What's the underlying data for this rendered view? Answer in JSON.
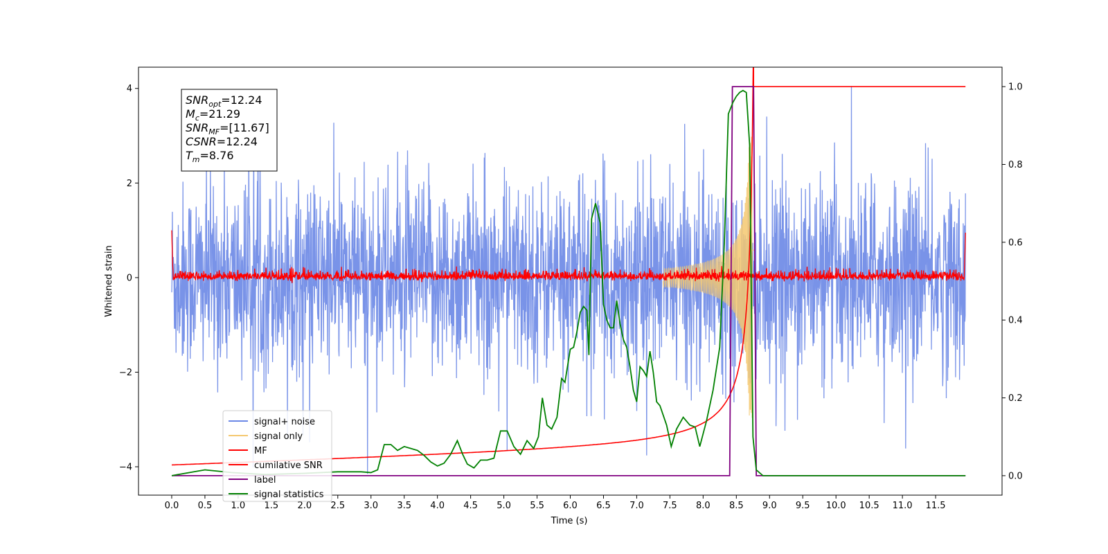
{
  "chart_data": {
    "type": "line",
    "xlabel": "Time (s)",
    "ylabel": "Whitened strain",
    "xlim": [
      -0.5,
      12.5
    ],
    "ylim": [
      -4.6,
      4.45
    ],
    "y2lim": [
      -0.05,
      1.05
    ],
    "x_ticks": [
      "0.0",
      "0.5",
      "1.0",
      "1.5",
      "2.0",
      "2.5",
      "3.0",
      "3.5",
      "4.0",
      "4.5",
      "5.0",
      "5.5",
      "6.0",
      "6.5",
      "7.0",
      "7.5",
      "8.0",
      "8.5",
      "9.0",
      "9.5",
      "10.0",
      "10.5",
      "11.0",
      "11.5"
    ],
    "y_ticks": [
      "4",
      "2",
      "0",
      "−2",
      "−4"
    ],
    "y2_ticks": [
      "1.0",
      "0.8",
      "0.6",
      "0.4",
      "0.2",
      "0.0"
    ],
    "info_box": [
      {
        "sym": "SNR",
        "sub": "opt",
        "val": "=12.24"
      },
      {
        "sym": "M",
        "sub": "c",
        "val": "=21.29"
      },
      {
        "sym": "SNR",
        "sub": "MF",
        "val": "=[11.67]"
      },
      {
        "sym": "CSNR",
        "sub": "",
        "val": "=12.24"
      },
      {
        "sym": "T",
        "sub": "m",
        "val": "=8.76"
      }
    ],
    "legend": {
      "position": "lower-left",
      "entries": [
        {
          "label": "signal+ noise",
          "color": "#6a87e6"
        },
        {
          "label": "signal only",
          "color": "#f5c870"
        },
        {
          "label": "MF",
          "color": "#ff0000"
        },
        {
          "label": "cumilative SNR",
          "color": "#ff0000"
        },
        {
          "label": "label",
          "color": "#800080"
        },
        {
          "label": "signal statistics",
          "color": "#008000"
        }
      ]
    },
    "series": [
      {
        "name": "signal statistics",
        "axis": "right",
        "color": "#008000",
        "points": [
          [
            0.0,
            0.0
          ],
          [
            0.5,
            0.015
          ],
          [
            0.9,
            0.008
          ],
          [
            1.4,
            0.003
          ],
          [
            2.0,
            0.006
          ],
          [
            2.5,
            0.01
          ],
          [
            2.85,
            0.01
          ],
          [
            3.0,
            0.008
          ],
          [
            3.1,
            0.015
          ],
          [
            3.2,
            0.08
          ],
          [
            3.3,
            0.08
          ],
          [
            3.4,
            0.065
          ],
          [
            3.5,
            0.075
          ],
          [
            3.6,
            0.07
          ],
          [
            3.7,
            0.065
          ],
          [
            3.8,
            0.052
          ],
          [
            3.9,
            0.035
          ],
          [
            4.0,
            0.025
          ],
          [
            4.1,
            0.032
          ],
          [
            4.2,
            0.055
          ],
          [
            4.3,
            0.09
          ],
          [
            4.38,
            0.055
          ],
          [
            4.45,
            0.03
          ],
          [
            4.55,
            0.02
          ],
          [
            4.65,
            0.04
          ],
          [
            4.75,
            0.04
          ],
          [
            4.85,
            0.045
          ],
          [
            4.95,
            0.115
          ],
          [
            5.05,
            0.115
          ],
          [
            5.15,
            0.075
          ],
          [
            5.25,
            0.055
          ],
          [
            5.35,
            0.09
          ],
          [
            5.45,
            0.07
          ],
          [
            5.52,
            0.1
          ],
          [
            5.58,
            0.2
          ],
          [
            5.65,
            0.13
          ],
          [
            5.72,
            0.12
          ],
          [
            5.8,
            0.15
          ],
          [
            5.87,
            0.25
          ],
          [
            5.92,
            0.24
          ],
          [
            6.0,
            0.325
          ],
          [
            6.05,
            0.33
          ],
          [
            6.1,
            0.37
          ],
          [
            6.15,
            0.42
          ],
          [
            6.2,
            0.435
          ],
          [
            6.25,
            0.425
          ],
          [
            6.28,
            0.31
          ],
          [
            6.32,
            0.66
          ],
          [
            6.38,
            0.7
          ],
          [
            6.45,
            0.65
          ],
          [
            6.5,
            0.44
          ],
          [
            6.55,
            0.4
          ],
          [
            6.6,
            0.38
          ],
          [
            6.65,
            0.38
          ],
          [
            6.7,
            0.45
          ],
          [
            6.75,
            0.39
          ],
          [
            6.8,
            0.35
          ],
          [
            6.85,
            0.33
          ],
          [
            6.9,
            0.28
          ],
          [
            6.95,
            0.22
          ],
          [
            7.0,
            0.19
          ],
          [
            7.05,
            0.28
          ],
          [
            7.1,
            0.27
          ],
          [
            7.15,
            0.255
          ],
          [
            7.2,
            0.32
          ],
          [
            7.25,
            0.265
          ],
          [
            7.3,
            0.19
          ],
          [
            7.35,
            0.18
          ],
          [
            7.45,
            0.13
          ],
          [
            7.52,
            0.075
          ],
          [
            7.6,
            0.12
          ],
          [
            7.7,
            0.15
          ],
          [
            7.8,
            0.13
          ],
          [
            7.88,
            0.125
          ],
          [
            7.95,
            0.075
          ],
          [
            8.05,
            0.14
          ],
          [
            8.15,
            0.22
          ],
          [
            8.25,
            0.33
          ],
          [
            8.32,
            0.6
          ],
          [
            8.38,
            0.93
          ],
          [
            8.45,
            0.96
          ],
          [
            8.5,
            0.975
          ],
          [
            8.55,
            0.985
          ],
          [
            8.6,
            0.99
          ],
          [
            8.65,
            0.985
          ],
          [
            8.7,
            0.85
          ],
          [
            8.75,
            0.1
          ],
          [
            8.8,
            0.015
          ],
          [
            8.9,
            0.0
          ],
          [
            11.95,
            0.0
          ]
        ]
      },
      {
        "name": "label",
        "axis": "right",
        "color": "#800080",
        "points": [
          [
            0.0,
            0.0
          ],
          [
            8.4,
            0.0
          ],
          [
            8.44,
            1.0
          ],
          [
            8.76,
            1.0
          ],
          [
            8.8,
            0.0
          ],
          [
            11.95,
            0.0
          ]
        ]
      }
    ]
  }
}
